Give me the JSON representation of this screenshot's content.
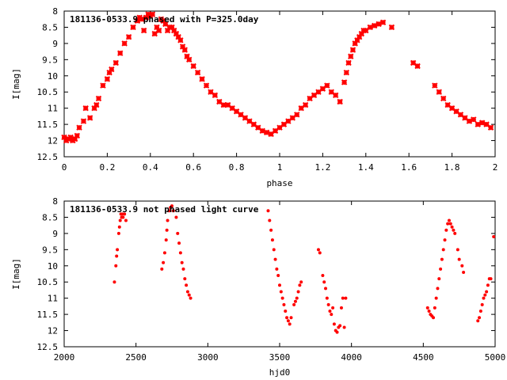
{
  "colors": {
    "marker": "#ff0000",
    "axes": "#000000",
    "background": "#ffffff"
  },
  "chart_data": [
    {
      "type": "scatter",
      "title": "181136-0533.9 phased with P=325.0day",
      "xlabel": "phase",
      "ylabel": "I[mag]",
      "xlim": [
        0,
        2
      ],
      "ylim": [
        8,
        12.5
      ],
      "y_inverted": true,
      "grid": false,
      "marker": "cross",
      "x_ticks": [
        "0",
        "0.2",
        "0.4",
        "0.6",
        "0.8",
        "1",
        "1.2",
        "1.4",
        "1.6",
        "1.8",
        "2"
      ],
      "x_tick_values": [
        0,
        0.2,
        0.4,
        0.6,
        0.8,
        1,
        1.2,
        1.4,
        1.6,
        1.8,
        2
      ],
      "y_ticks": [
        "8",
        "8.5",
        "9",
        "9.5",
        "10",
        "10.5",
        "11",
        "11.5",
        "12",
        "12.5"
      ],
      "y_tick_values": [
        8,
        8.5,
        9,
        9.5,
        10,
        10.5,
        11,
        11.5,
        12,
        12.5
      ],
      "series": [
        {
          "x": [
            0.0,
            0.01,
            0.02,
            0.03,
            0.04,
            0.05,
            0.06,
            0.07,
            0.09,
            0.1,
            0.12,
            0.14,
            0.15,
            0.16,
            0.18,
            0.2,
            0.21,
            0.22,
            0.24,
            0.26,
            0.28,
            0.3,
            0.32,
            0.34,
            0.35,
            0.36,
            0.37,
            0.38,
            0.39,
            0.4,
            0.41,
            0.42,
            0.43,
            0.44,
            0.45,
            0.46,
            0.47,
            0.48,
            0.49,
            0.5,
            0.51,
            0.52,
            0.53,
            0.54,
            0.55,
            0.56,
            0.57,
            0.58,
            0.6,
            0.62,
            0.64,
            0.66,
            0.68,
            0.7,
            0.72,
            0.74,
            0.76,
            0.78,
            0.8,
            0.82,
            0.84,
            0.86,
            0.88,
            0.9,
            0.92,
            0.94,
            0.96,
            0.98,
            1.0,
            1.02,
            1.04,
            1.06,
            1.08,
            1.1,
            1.12,
            1.14,
            1.16,
            1.18,
            1.2,
            1.22,
            1.24,
            1.26,
            1.28,
            1.3,
            1.31,
            1.32,
            1.33,
            1.34,
            1.35,
            1.36,
            1.37,
            1.38,
            1.39,
            1.4,
            1.42,
            1.44,
            1.46,
            1.48,
            1.52,
            1.62,
            1.64,
            1.72,
            1.74,
            1.76,
            1.78,
            1.8,
            1.82,
            1.84,
            1.86,
            1.88,
            1.9,
            1.92,
            1.94,
            1.96,
            1.98
          ],
          "y": [
            11.9,
            12.0,
            11.95,
            11.9,
            12.0,
            11.95,
            11.85,
            11.6,
            11.4,
            11.0,
            11.3,
            11.0,
            10.9,
            10.7,
            10.3,
            10.1,
            9.9,
            9.8,
            9.6,
            9.3,
            9.0,
            8.8,
            8.5,
            8.3,
            8.2,
            8.25,
            8.6,
            8.2,
            8.1,
            8.15,
            8.1,
            8.7,
            8.5,
            8.6,
            8.25,
            8.3,
            8.4,
            8.6,
            8.5,
            8.5,
            8.6,
            8.7,
            8.8,
            8.9,
            9.1,
            9.2,
            9.4,
            9.5,
            9.7,
            9.9,
            10.1,
            10.3,
            10.5,
            10.6,
            10.8,
            10.9,
            10.9,
            11.0,
            11.1,
            11.2,
            11.3,
            11.4,
            11.5,
            11.6,
            11.7,
            11.75,
            11.8,
            11.7,
            11.6,
            11.5,
            11.4,
            11.3,
            11.2,
            11.0,
            10.9,
            10.7,
            10.6,
            10.5,
            10.4,
            10.3,
            10.5,
            10.6,
            10.8,
            10.2,
            9.9,
            9.6,
            9.4,
            9.2,
            9.0,
            8.9,
            8.8,
            8.7,
            8.6,
            8.6,
            8.5,
            8.45,
            8.4,
            8.35,
            8.5,
            9.6,
            9.7,
            10.3,
            10.5,
            10.7,
            10.9,
            11.0,
            11.1,
            11.2,
            11.3,
            11.4,
            11.35,
            11.5,
            11.45,
            11.5,
            11.6
          ]
        }
      ]
    },
    {
      "type": "scatter",
      "title": "181136-0533.9 not phased light curve",
      "xlabel": "hjd0",
      "ylabel": "I[mag]",
      "xlim": [
        2000,
        5000
      ],
      "ylim": [
        8,
        12.5
      ],
      "y_inverted": true,
      "grid": false,
      "marker": "dot",
      "x_ticks": [
        "2000",
        "2500",
        "3000",
        "3500",
        "4000",
        "4500",
        "5000"
      ],
      "x_tick_values": [
        2000,
        2500,
        3000,
        3500,
        4000,
        4500,
        5000
      ],
      "y_ticks": [
        "8",
        "8.5",
        "9",
        "9.5",
        "10",
        "10.5",
        "11",
        "11.5",
        "12",
        "12.5"
      ],
      "y_tick_values": [
        8,
        8.5,
        9,
        9.5,
        10,
        10.5,
        11,
        11.5,
        12,
        12.5
      ],
      "series": [
        {
          "x": [
            2350,
            2360,
            2365,
            2370,
            2380,
            2385,
            2390,
            2395,
            2400,
            2405,
            2410,
            2420,
            2430,
            2680,
            2690,
            2700,
            2710,
            2715,
            2720,
            2730,
            2740,
            2750,
            2760,
            2780,
            2790,
            2800,
            2810,
            2820,
            2830,
            2840,
            2850,
            2860,
            2870,
            2880,
            3420,
            3430,
            3440,
            3450,
            3460,
            3470,
            3480,
            3490,
            3500,
            3510,
            3520,
            3530,
            3540,
            3550,
            3560,
            3570,
            3580,
            3600,
            3610,
            3620,
            3630,
            3640,
            3650,
            3770,
            3780,
            3800,
            3810,
            3820,
            3830,
            3840,
            3850,
            3860,
            3870,
            3880,
            3890,
            3900,
            3910,
            3920,
            3930,
            3940,
            3950,
            3960,
            4530,
            4540,
            4550,
            4560,
            4570,
            4580,
            4590,
            4600,
            4610,
            4620,
            4630,
            4640,
            4650,
            4660,
            4670,
            4680,
            4690,
            4700,
            4710,
            4720,
            4740,
            4750,
            4770,
            4780,
            4880,
            4890,
            4900,
            4910,
            4920,
            4930,
            4940,
            4950,
            4960,
            4970,
            4990
          ],
          "y": [
            10.5,
            10.0,
            9.7,
            9.5,
            9.0,
            8.8,
            8.6,
            8.4,
            8.5,
            8.4,
            8.5,
            8.4,
            8.6,
            10.1,
            9.9,
            9.6,
            9.2,
            8.9,
            8.6,
            8.3,
            8.2,
            8.15,
            8.3,
            8.5,
            9.0,
            9.3,
            9.6,
            9.9,
            10.1,
            10.4,
            10.6,
            10.8,
            10.9,
            11.0,
            8.3,
            8.6,
            8.9,
            9.2,
            9.5,
            9.8,
            10.1,
            10.3,
            10.6,
            10.8,
            11.0,
            11.2,
            11.4,
            11.6,
            11.7,
            11.8,
            11.6,
            11.2,
            11.1,
            11.0,
            10.8,
            10.6,
            10.5,
            9.5,
            9.6,
            10.3,
            10.5,
            10.7,
            11.0,
            11.2,
            11.4,
            11.5,
            11.3,
            11.8,
            12.0,
            12.05,
            11.9,
            11.85,
            11.3,
            11.0,
            11.9,
            11.0,
            11.3,
            11.4,
            11.5,
            11.55,
            11.6,
            11.3,
            11.0,
            10.7,
            10.4,
            10.1,
            9.8,
            9.5,
            9.2,
            8.9,
            8.7,
            8.6,
            8.7,
            8.8,
            8.9,
            9.0,
            9.5,
            9.8,
            10.0,
            10.2,
            11.7,
            11.6,
            11.4,
            11.2,
            11.0,
            10.9,
            10.8,
            10.6,
            10.4,
            10.4,
            9.1
          ]
        }
      ]
    }
  ]
}
